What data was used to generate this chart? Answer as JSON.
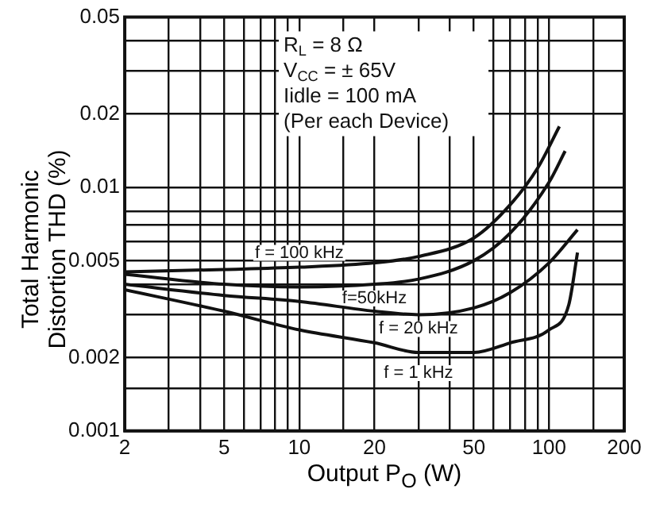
{
  "chart_data": {
    "type": "line",
    "xlabel": "Output P$_{O}$ (W)",
    "ylabel": "Total Harmonic\nDistortion THD (%)",
    "log": "xy",
    "grid": true,
    "legend": false,
    "marker": "none",
    "line_style": "solid",
    "xlim": [
      2,
      200
    ],
    "ylim": [
      0.001,
      0.05
    ],
    "xticks": [
      2,
      {
        "value": 3,
        "label": null
      },
      {
        "value": 4,
        "label": null
      },
      5,
      {
        "value": 6,
        "label": null
      },
      {
        "value": 7,
        "label": null
      },
      {
        "value": 8,
        "label": null
      },
      {
        "value": 9,
        "label": null
      },
      10,
      {
        "value": 15,
        "label": null
      },
      20,
      {
        "value": 30,
        "label": null
      },
      {
        "value": 40,
        "label": null
      },
      50,
      {
        "value": 60,
        "label": null
      },
      {
        "value": 70,
        "label": null
      },
      {
        "value": 80,
        "label": null
      },
      {
        "value": 90,
        "label": null
      },
      100,
      {
        "value": 150,
        "label": null
      },
      200
    ],
    "yticks": [
      0.001,
      {
        "value": 0.0015,
        "label": null
      },
      0.002,
      {
        "value": 0.003,
        "label": null
      },
      {
        "value": 0.004,
        "label": null
      },
      0.005,
      {
        "value": 0.006,
        "label": null
      },
      {
        "value": 0.007,
        "label": null
      },
      {
        "value": 0.008,
        "label": null
      },
      0.01,
      0.02,
      {
        "value": 0.03,
        "label": null
      },
      {
        "value": 0.04,
        "label": null
      },
      0.05
    ],
    "annotations": [
      "R$_{L}$ = 8 Ω",
      "V$_{CC}$ = ± 65V",
      "Iidle = 100 mA",
      "(Per each Device)"
    ],
    "series": [
      {
        "name": "f = 100 kHz",
        "color": "#111111",
        "x": [
          2,
          5,
          10,
          20,
          30,
          50,
          70,
          90,
          110
        ],
        "values": [
          0.0045,
          0.0046,
          0.0047,
          0.0049,
          0.0052,
          0.0062,
          0.0085,
          0.012,
          0.0178
        ]
      },
      {
        "name": "f=50kHz",
        "color": "#111111",
        "x": [
          2,
          5,
          10,
          20,
          30,
          50,
          70,
          100,
          116
        ],
        "values": [
          0.0044,
          0.004,
          0.0039,
          0.004,
          0.0042,
          0.005,
          0.0065,
          0.0105,
          0.0141
        ]
      },
      {
        "name": "f = 20 kHz",
        "color": "#111111",
        "x": [
          2,
          5,
          10,
          20,
          30,
          50,
          70,
          100,
          130
        ],
        "values": [
          0.004,
          0.0036,
          0.0034,
          0.0031,
          0.003,
          0.0032,
          0.0037,
          0.0049,
          0.0067
        ]
      },
      {
        "name": "f = 1 kHz",
        "color": "#111111",
        "x": [
          2,
          5,
          10,
          20,
          30,
          50,
          70,
          100,
          120,
          130
        ],
        "values": [
          0.0038,
          0.0031,
          0.0026,
          0.0023,
          0.0021,
          0.0021,
          0.0023,
          0.0026,
          0.0033,
          0.0054
        ]
      }
    ]
  }
}
